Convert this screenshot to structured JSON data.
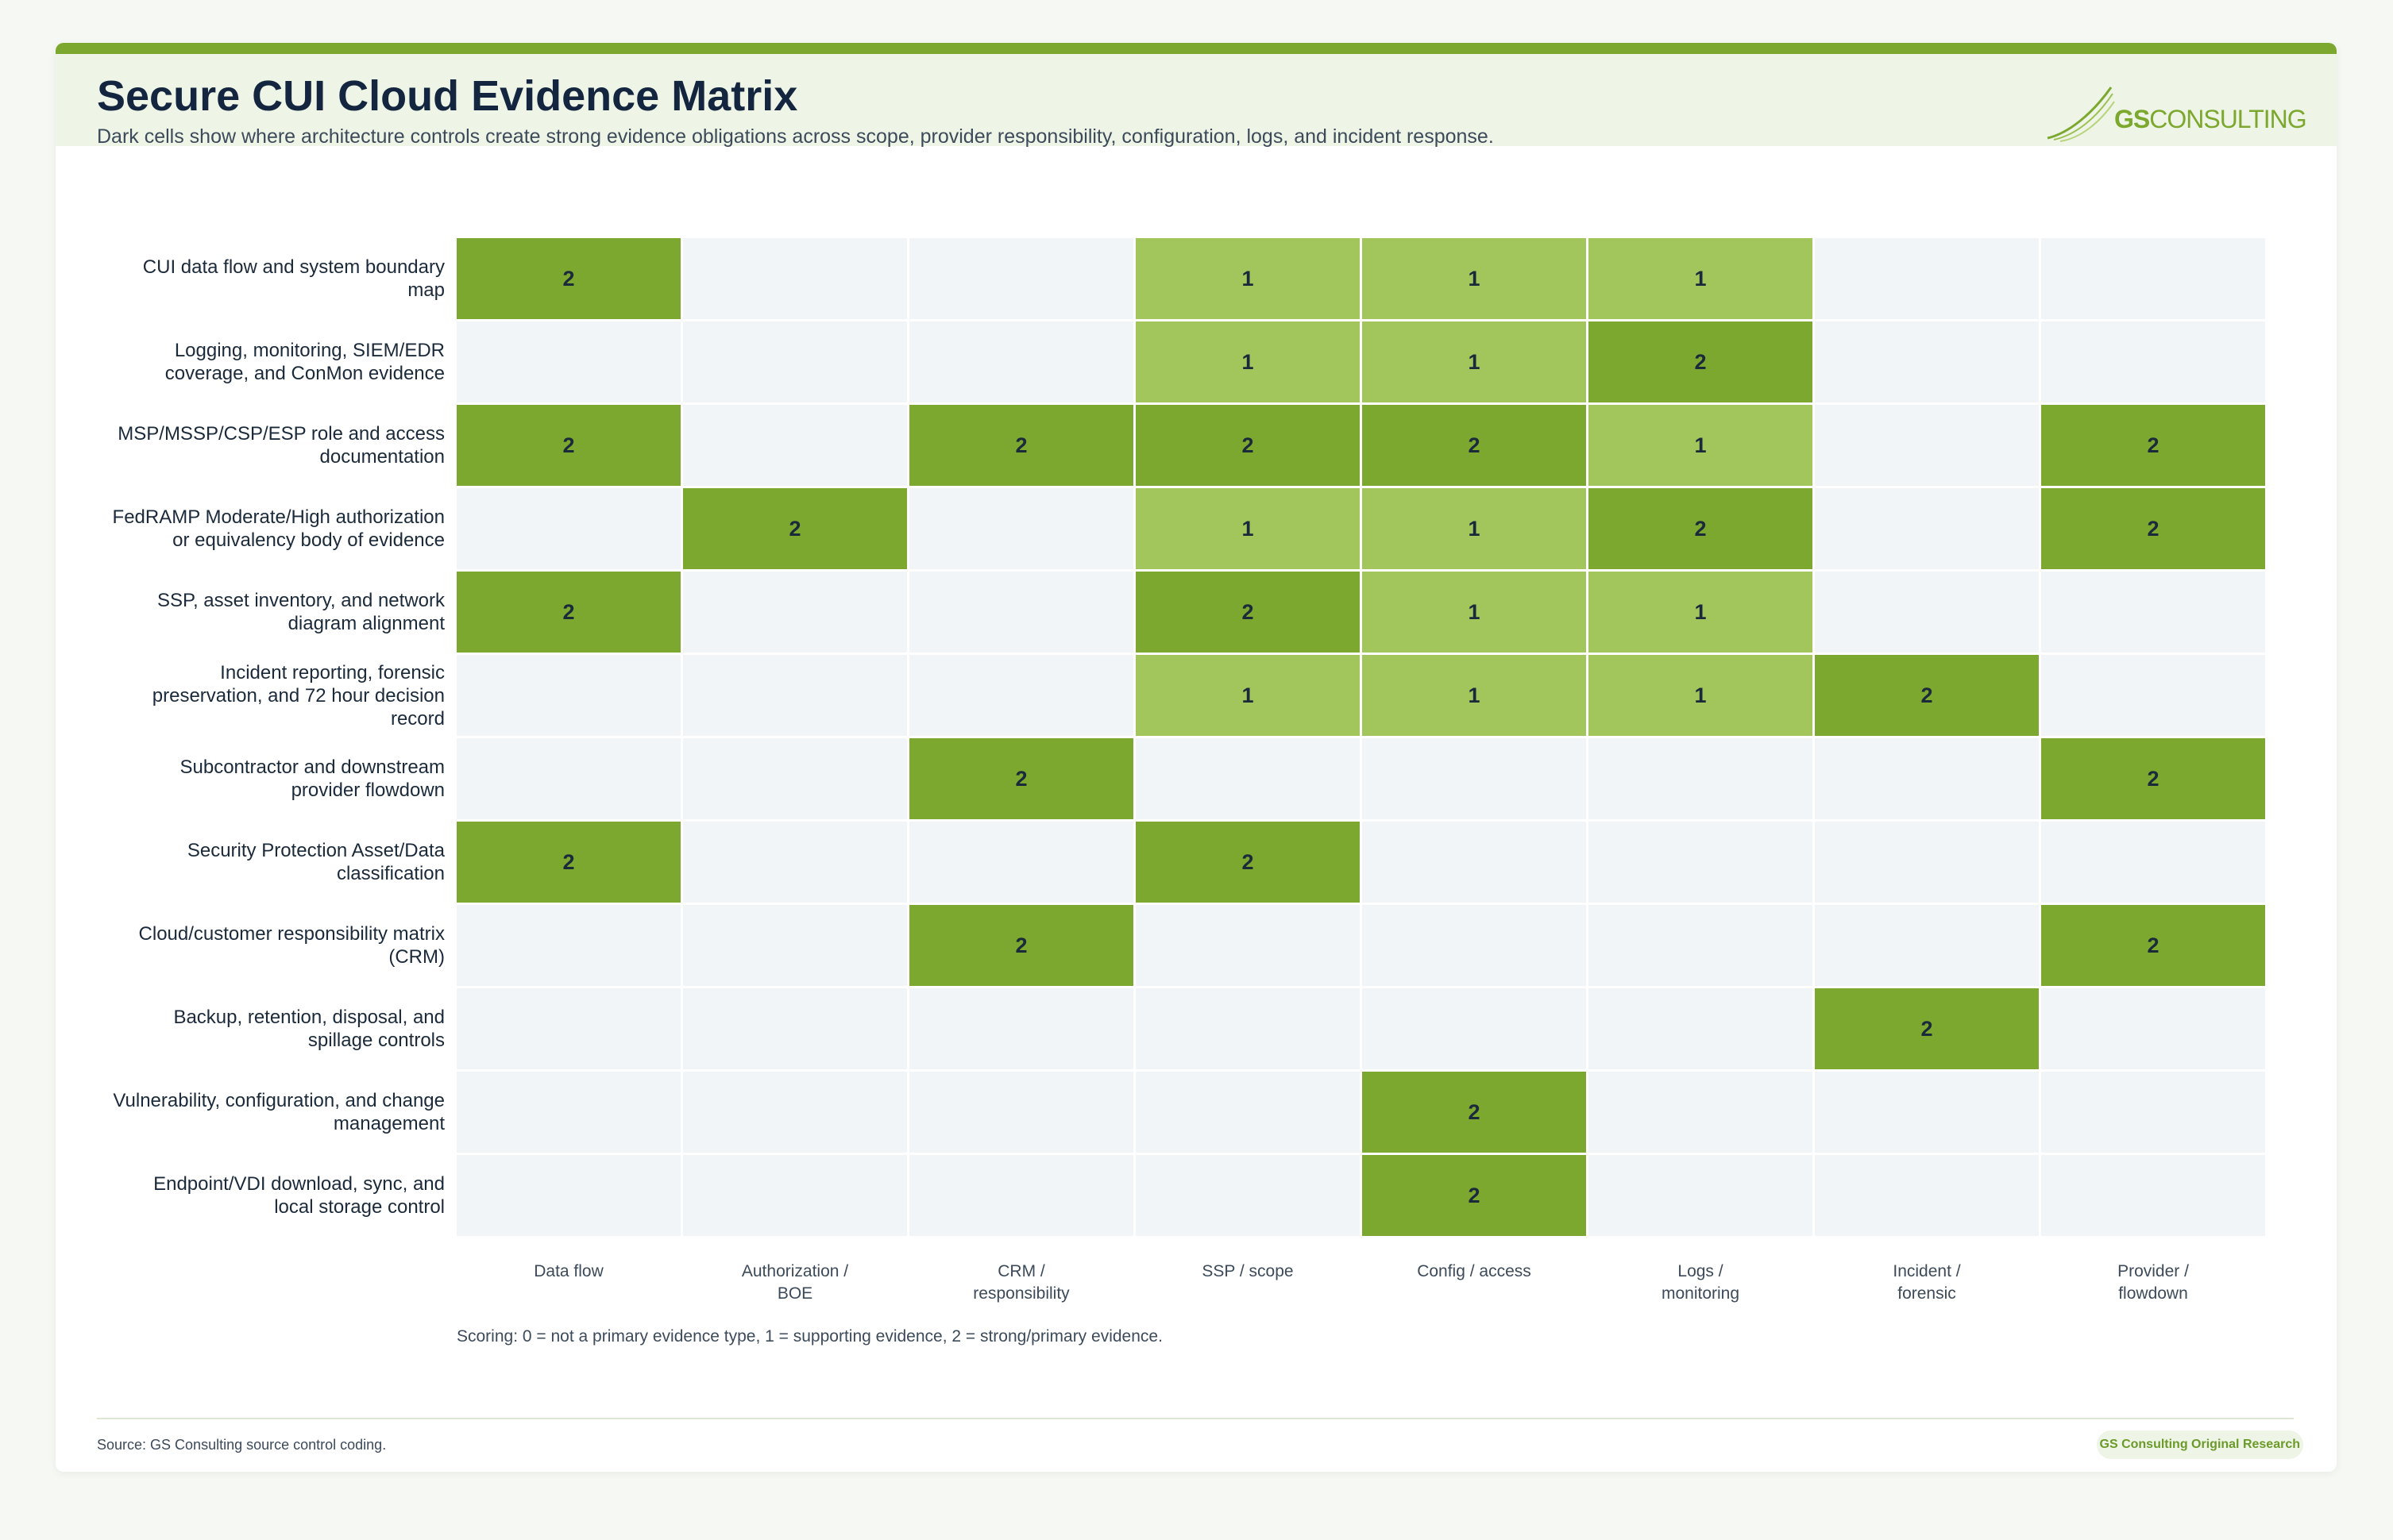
{
  "header": {
    "title": "Secure CUI Cloud Evidence Matrix",
    "subtitle": "Dark cells show where architecture controls create strong evidence obligations across scope, provider responsibility, configuration, logs, and incident response.",
    "logo_gs": "GS",
    "logo_rest": "CONSULTING"
  },
  "colors": {
    "strong": "#7ca82f",
    "supporting": "#a2c55c",
    "none": "#f2f5f8",
    "accent": "#7ca82f"
  },
  "chart_data": {
    "type": "heatmap",
    "columns": [
      "Data flow",
      "Authorization /\nBOE",
      "CRM /\nresponsibility",
      "SSP / scope",
      "Config / access",
      "Logs /\nmonitoring",
      "Incident /\nforensic",
      "Provider /\nflowdown"
    ],
    "rows": [
      "CUI data flow and system boundary map",
      "Logging, monitoring, SIEM/EDR coverage, and ConMon evidence",
      "MSP/MSSP/CSP/ESP role and access documentation",
      "FedRAMP Moderate/High authorization or equivalency body of evidence",
      "SSP, asset inventory, and network diagram alignment",
      "Incident reporting, forensic preservation, and 72 hour decision record",
      "Subcontractor and downstream provider flowdown",
      "Security Protection Asset/Data classification",
      "Cloud/customer responsibility matrix (CRM)",
      "Backup, retention, disposal, and spillage controls",
      "Vulnerability, configuration, and change management",
      "Endpoint/VDI download, sync, and local storage control"
    ],
    "values": [
      [
        2,
        0,
        0,
        1,
        1,
        1,
        0,
        0
      ],
      [
        0,
        0,
        0,
        1,
        1,
        2,
        0,
        0
      ],
      [
        2,
        0,
        2,
        2,
        2,
        1,
        0,
        2
      ],
      [
        0,
        2,
        0,
        1,
        1,
        2,
        0,
        2
      ],
      [
        2,
        0,
        0,
        2,
        1,
        1,
        0,
        0
      ],
      [
        0,
        0,
        0,
        1,
        1,
        1,
        2,
        0
      ],
      [
        0,
        0,
        2,
        0,
        0,
        0,
        0,
        2
      ],
      [
        2,
        0,
        0,
        2,
        0,
        0,
        0,
        0
      ],
      [
        0,
        0,
        2,
        0,
        0,
        0,
        0,
        2
      ],
      [
        0,
        0,
        0,
        0,
        0,
        0,
        2,
        0
      ],
      [
        0,
        0,
        0,
        0,
        2,
        0,
        0,
        0
      ],
      [
        0,
        0,
        0,
        0,
        2,
        0,
        0,
        0
      ]
    ],
    "scale": [
      0,
      2
    ]
  },
  "scoring_note": "Scoring: 0 = not a primary evidence type, 1 = supporting evidence, 2 = strong/primary evidence.",
  "footer": {
    "source": "Source: GS Consulting source control coding.",
    "badge": "GS Consulting Original Research"
  }
}
